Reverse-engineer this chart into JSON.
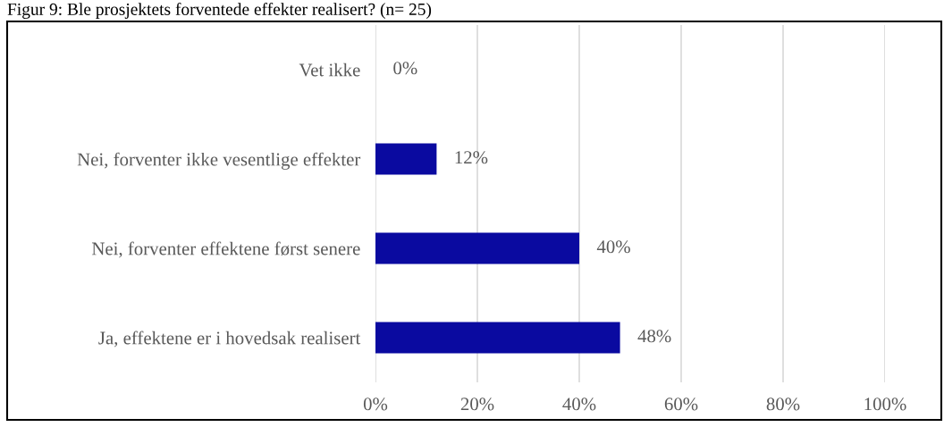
{
  "chart_data": {
    "type": "bar",
    "orientation": "horizontal",
    "title": "Figur 9: Ble prosjektets forventede effekter realisert? (n= 25)",
    "categories": [
      "Vet ikke",
      "Nei, forventer ikke vesentlige effekter",
      "Nei, forventer effektene først senere",
      "Ja, effektene er i hovedsak realisert"
    ],
    "values": [
      0,
      12,
      40,
      48
    ],
    "color": "#0a0aa0",
    "value_labels": [
      "0%",
      "12%",
      "40%",
      "48%"
    ],
    "xlim": [
      0,
      100
    ],
    "xticks": [
      {
        "value": 0,
        "label": "0%"
      },
      {
        "value": 20,
        "label": "20%"
      },
      {
        "value": 40,
        "label": "40%"
      },
      {
        "value": 60,
        "label": "60%"
      },
      {
        "value": 80,
        "label": "80%"
      },
      {
        "value": 100,
        "label": "100%"
      }
    ],
    "grid": "x",
    "legend": false
  }
}
